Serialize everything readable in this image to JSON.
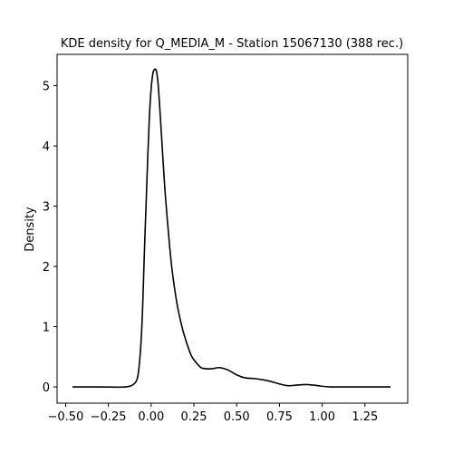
{
  "chart_data": {
    "type": "line",
    "title": "KDE density for Q_MEDIA_M - Station 15067130 (388 rec.)",
    "xlabel": "",
    "ylabel": "Density",
    "xlim": [
      -0.55,
      1.5
    ],
    "ylim": [
      -0.27,
      5.52
    ],
    "x_ticks": [
      -0.5,
      -0.25,
      0.0,
      0.25,
      0.5,
      0.75,
      1.0,
      1.25
    ],
    "x_tick_labels": [
      "−0.50",
      "−0.25",
      "0.00",
      "0.25",
      "0.50",
      "0.75",
      "1.00",
      "1.25"
    ],
    "y_ticks": [
      0,
      1,
      2,
      3,
      4,
      5
    ],
    "y_tick_labels": [
      "0",
      "1",
      "2",
      "3",
      "4",
      "5"
    ],
    "grid": false,
    "line_color": "#000000",
    "series": [
      {
        "x": [
          -0.46,
          -0.3,
          -0.15,
          -0.1,
          -0.08,
          -0.07,
          -0.06,
          -0.05,
          -0.04,
          -0.03,
          -0.02,
          -0.01,
          0.0,
          0.01,
          0.02,
          0.03,
          0.04,
          0.05,
          0.06,
          0.08,
          0.1,
          0.12,
          0.15,
          0.18,
          0.2,
          0.23,
          0.25,
          0.28,
          0.3,
          0.35,
          0.4,
          0.45,
          0.5,
          0.55,
          0.6,
          0.65,
          0.7,
          0.75,
          0.8,
          0.85,
          0.9,
          0.95,
          1.0,
          1.05,
          1.1,
          1.2,
          1.3,
          1.4
        ],
        "y": [
          0.0,
          0.0,
          0.0,
          0.05,
          0.15,
          0.35,
          0.7,
          1.3,
          2.2,
          3.0,
          3.8,
          4.5,
          4.95,
          5.2,
          5.27,
          5.25,
          5.05,
          4.65,
          4.2,
          3.3,
          2.6,
          2.0,
          1.4,
          1.0,
          0.8,
          0.55,
          0.45,
          0.35,
          0.31,
          0.3,
          0.32,
          0.28,
          0.2,
          0.15,
          0.14,
          0.12,
          0.09,
          0.05,
          0.02,
          0.03,
          0.04,
          0.03,
          0.01,
          0.0,
          0.0,
          0.0,
          0.0,
          0.0
        ]
      }
    ]
  }
}
